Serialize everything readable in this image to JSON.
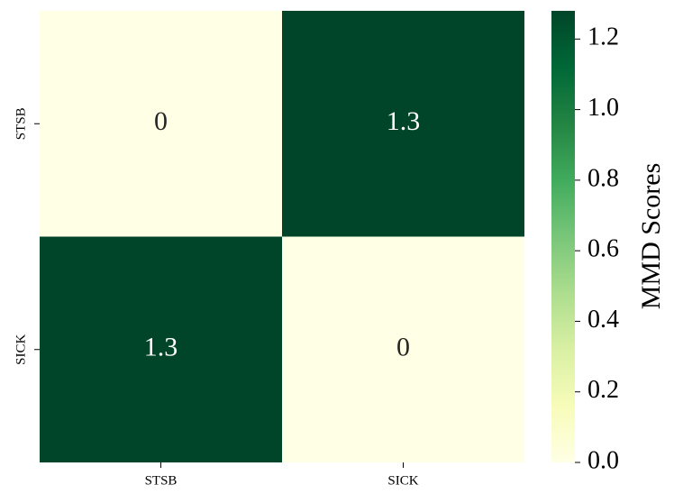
{
  "chart_data": {
    "type": "heatmap",
    "x_categories": [
      "STSB",
      "SICK"
    ],
    "y_categories": [
      "STSB",
      "SICK"
    ],
    "values": [
      [
        0,
        1.28
      ],
      [
        1.28,
        0
      ]
    ],
    "value_labels": [
      [
        "0",
        "1.3"
      ],
      [
        "1.3",
        "0"
      ]
    ],
    "colorbar_label": "MMD Scores",
    "clim": [
      0,
      1.28
    ],
    "cticks": [
      {
        "value": 0,
        "label": "0.0"
      },
      0.2,
      0.4,
      0.6,
      0.8,
      {
        "value": 1,
        "label": "1.0"
      },
      1.2
    ],
    "colormap": [
      "#ffffe5",
      "#f7fcb9",
      "#d9f0a3",
      "#addd8e",
      "#78c679",
      "#41ab5d",
      "#238443",
      "#006837",
      "#004529"
    ]
  }
}
